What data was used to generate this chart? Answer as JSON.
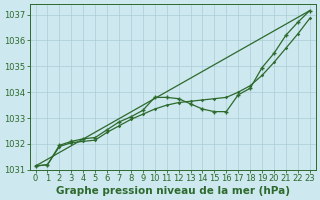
{
  "xlabel": "Graphe pression niveau de la mer (hPa)",
  "ylim": [
    1031.0,
    1037.4
  ],
  "xlim": [
    -0.5,
    23.5
  ],
  "yticks": [
    1031,
    1032,
    1033,
    1034,
    1035,
    1036,
    1037
  ],
  "xticks": [
    0,
    1,
    2,
    3,
    4,
    5,
    6,
    7,
    8,
    9,
    10,
    11,
    12,
    13,
    14,
    15,
    16,
    17,
    18,
    19,
    20,
    21,
    22,
    23
  ],
  "background_color": "#cde8ee",
  "grid_color": "#aacdd6",
  "line_color": "#2d6a2d",
  "font_color": "#2d6a2d",
  "tick_fontsize": 6,
  "label_fontsize": 7.5,
  "line_straight": [
    1031.15,
    1037.15
  ],
  "line_smooth": [
    1031.15,
    1031.2,
    1031.9,
    1032.05,
    1032.1,
    1032.15,
    1032.45,
    1032.7,
    1032.95,
    1033.15,
    1033.35,
    1033.5,
    1033.6,
    1033.65,
    1033.7,
    1033.75,
    1033.8,
    1034.0,
    1034.25,
    1034.65,
    1035.15,
    1035.7,
    1036.25,
    1036.85
  ],
  "line_wiggly": [
    1031.15,
    1031.2,
    1031.95,
    1032.1,
    1032.2,
    1032.25,
    1032.55,
    1032.85,
    1033.05,
    1033.3,
    1033.8,
    1033.8,
    1033.75,
    1033.55,
    1033.35,
    1033.25,
    1033.25,
    1033.9,
    1034.15,
    1034.95,
    1035.5,
    1036.2,
    1036.7,
    1037.15
  ]
}
